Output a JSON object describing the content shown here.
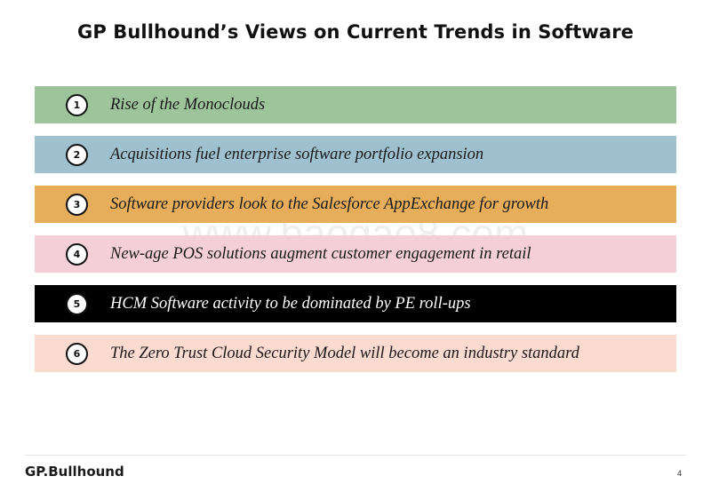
{
  "page": {
    "title": "GP Bullhound’s Views on Current Trends in Software",
    "watermark": "www.baogao8.com",
    "logo": "GP.Bullhound",
    "page_number": "4"
  },
  "trends": [
    {
      "number": "1",
      "text": "Rise of  the Monoclouds",
      "color": "#9dc49a",
      "text_color": "#1a1a1a"
    },
    {
      "number": "2",
      "text": "Acquisitions fuel enterprise software portfolio expansion",
      "color": "#9fc1cf",
      "text_color": "#1a1a1a"
    },
    {
      "number": "3",
      "text": "Software providers look to the Salesforce AppExchange for growth",
      "color": "#e6ad5a",
      "text_color": "#1a1a1a"
    },
    {
      "number": "4",
      "text": "New-age POS solutions augment customer engagement in retail",
      "color": "#f4cfd8",
      "text_color": "#1a1a1a"
    },
    {
      "number": "5",
      "text": "HCM Software activity to be dominated by PE roll-ups",
      "color": "#000000",
      "text_color": "#ffffff"
    },
    {
      "number": "6",
      "text": "The Zero Trust Cloud Security Model will become an industry standard",
      "color": "#fbdad0",
      "text_color": "#1a1a1a"
    }
  ]
}
